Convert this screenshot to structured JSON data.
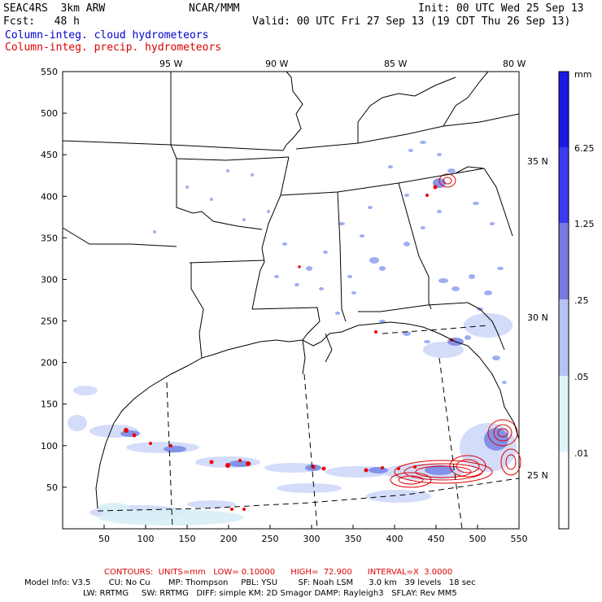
{
  "header": {
    "model": "SEAC4RS  3km ARW",
    "org": "NCAR/MMM",
    "init": "Init: 00 UTC Wed 25 Sep 13",
    "fcst": "Fcst:   48 h",
    "valid": "Valid: 00 UTC Fri 27 Sep 13 (19 CDT Thu 26 Sep 13)",
    "field_cloud": "Column-integ. cloud hydrometeors",
    "field_precip": "Column-integ. precip. hydrometeors"
  },
  "axes": {
    "x_ticks": [
      "50",
      "100",
      "150",
      "200",
      "250",
      "300",
      "350",
      "400",
      "450",
      "500",
      "550"
    ],
    "y_ticks": [
      "50",
      "100",
      "150",
      "200",
      "250",
      "300",
      "350",
      "400",
      "450",
      "500",
      "550"
    ],
    "lon_labels": [
      "95 W",
      "90 W",
      "85 W",
      "80 W"
    ],
    "lat_labels": [
      "35 N",
      "30 N",
      "25 N"
    ]
  },
  "colorbar": {
    "unit": "mm",
    "levels": [
      "6.25",
      "1.25",
      ".25",
      ".05",
      ".01"
    ],
    "colors": [
      "#1a1ae6",
      "#3a3af0",
      "#7a7ae0",
      "#b4c4f4",
      "#dff4f8",
      "#ffffff"
    ]
  },
  "footer": {
    "contours": "CONTOURS:  UNITS=mm   LOW= 0.10000      HIGH=  72.900      INTERVAL=X  3.0000",
    "line1": "Model Info: V3.5       CU: No Cu       MP: Thompson     PBL: YSU        SF: Noah LSM      3.0 km   39 levels   18 sec",
    "line2": "LW: RRTMG     SW: RRTMG   DIFF: simple KM: 2D Smagor DAMP: Rayleigh3   SFLAY: Rev MM5"
  }
}
